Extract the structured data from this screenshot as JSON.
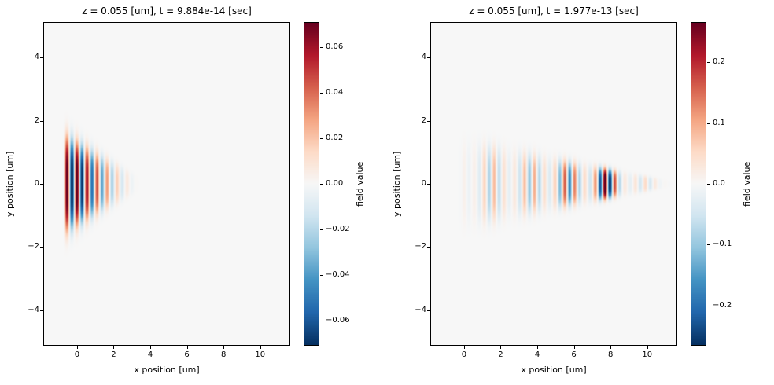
{
  "figure": {
    "background": "#ffffff",
    "text_color": "#000000",
    "colormap": {
      "name": "RdBu_r",
      "stops": [
        [
          0.0,
          "#053061"
        ],
        [
          0.1,
          "#2166ac"
        ],
        [
          0.2,
          "#4393c3"
        ],
        [
          0.3,
          "#92c5de"
        ],
        [
          0.4,
          "#d1e5f0"
        ],
        [
          0.5,
          "#f7f7f7"
        ],
        [
          0.6,
          "#fddbc7"
        ],
        [
          0.7,
          "#f4a582"
        ],
        [
          0.8,
          "#d6604d"
        ],
        [
          0.9,
          "#b2182b"
        ],
        [
          1.0,
          "#67001f"
        ]
      ]
    }
  },
  "chart_data": [
    {
      "type": "heatmap",
      "title": "z = 0.055 [um], t = 9.884e-14 [sec]",
      "xlabel": "x position [um]",
      "ylabel": "y position [um]",
      "xlim": [
        -1.8,
        11.6
      ],
      "ylim": [
        -5.1,
        5.1
      ],
      "xticks": [
        {
          "v": 0,
          "label": "0"
        },
        {
          "v": 2,
          "label": "2"
        },
        {
          "v": 4,
          "label": "4"
        },
        {
          "v": 6,
          "label": "6"
        },
        {
          "v": 8,
          "label": "8"
        },
        {
          "v": 10,
          "label": "10"
        }
      ],
      "yticks": [
        {
          "v": -4,
          "label": "−4"
        },
        {
          "v": -2,
          "label": "−2"
        },
        {
          "v": 0,
          "label": "0"
        },
        {
          "v": 2,
          "label": "2"
        },
        {
          "v": 4,
          "label": "4"
        }
      ],
      "colorbar": {
        "label": "field value",
        "vmin": -0.0705,
        "vmax": 0.0705,
        "ticks": [
          {
            "v": 0.06,
            "label": "0.06"
          },
          {
            "v": 0.04,
            "label": "0.04"
          },
          {
            "v": 0.02,
            "label": "0.02"
          },
          {
            "v": 0.0,
            "label": "0.00"
          },
          {
            "v": -0.02,
            "label": "−0.02"
          },
          {
            "v": -0.04,
            "label": "−0.04"
          },
          {
            "v": -0.06,
            "label": "−0.06"
          }
        ]
      },
      "field_model": {
        "wavelength": 0.55,
        "phase": 0,
        "x_start": -0.75,
        "x_end": 3.4,
        "rise": 0.12,
        "fall": 0.5,
        "w_start": 2.45,
        "w_end": 0.35,
        "y_power": 4,
        "amp_gaussians": [
          [
            0.075,
            -0.3,
            1.4
          ],
          [
            0.02,
            1.5,
            1.2
          ]
        ],
        "group": null
      }
    },
    {
      "type": "heatmap",
      "title": "z = 0.055 [um], t = 1.977e-13 [sec]",
      "xlabel": "x position [um]",
      "ylabel": "y position [um]",
      "xlim": [
        -1.8,
        11.6
      ],
      "ylim": [
        -5.1,
        5.1
      ],
      "xticks": [
        {
          "v": 0,
          "label": "0"
        },
        {
          "v": 2,
          "label": "2"
        },
        {
          "v": 4,
          "label": "4"
        },
        {
          "v": 6,
          "label": "6"
        },
        {
          "v": 8,
          "label": "8"
        },
        {
          "v": 10,
          "label": "10"
        }
      ],
      "yticks": [
        {
          "v": -4,
          "label": "−4"
        },
        {
          "v": -2,
          "label": "−2"
        },
        {
          "v": 0,
          "label": "0"
        },
        {
          "v": 2,
          "label": "2"
        },
        {
          "v": 4,
          "label": "4"
        }
      ],
      "colorbar": {
        "label": "field value",
        "vmin": -0.265,
        "vmax": 0.265,
        "ticks": [
          {
            "v": 0.2,
            "label": "0.2"
          },
          {
            "v": 0.1,
            "label": "0.1"
          },
          {
            "v": 0.0,
            "label": "0.0"
          },
          {
            "v": -0.1,
            "label": "−0.1"
          },
          {
            "v": -0.2,
            "label": "−0.2"
          }
        ]
      },
      "field_model": {
        "wavelength": 0.55,
        "phase": 0,
        "x_start": -0.3,
        "x_end": 11.5,
        "rise": 0.5,
        "fall": 1.0,
        "w_start": 2.15,
        "w_end": 0.12,
        "y_power": 4,
        "amp_gaussians": [
          [
            0.09,
            2.0,
            2.2
          ],
          [
            0.17,
            5.6,
            1.8
          ],
          [
            0.27,
            7.8,
            0.9
          ],
          [
            0.05,
            10.0,
            1.5
          ]
        ],
        "group": [
          0.62,
          0.38,
          2.1,
          7.8
        ]
      }
    }
  ]
}
